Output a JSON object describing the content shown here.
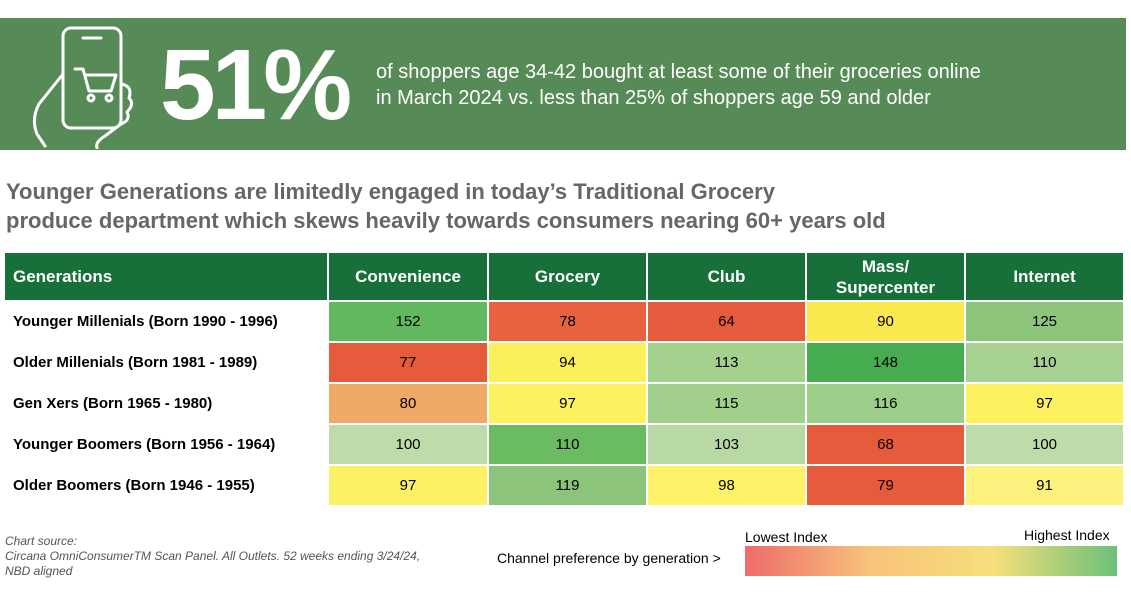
{
  "banner": {
    "stat": "51%",
    "lines": [
      "of shoppers age 34-42 bought at least some of their groceries online",
      "in March 2024 vs. less than 25% of shoppers age 59 and older"
    ]
  },
  "heading": [
    "Younger Generations are limitedly engaged in today’s Traditional Grocery",
    "produce department which skews heavily towards consumers nearing 60+ years old"
  ],
  "table": {
    "header": [
      "Generations",
      "Convenience",
      "Grocery",
      "Club",
      "Mass/\nSupercenter",
      "Internet"
    ],
    "rows": [
      [
        "Younger Millenials (Born 1990 - 1996)",
        152,
        78,
        64,
        90,
        125
      ],
      [
        "Older Millenials (Born 1981 - 1989)",
        77,
        94,
        113,
        148,
        110
      ],
      [
        "Gen Xers (Born 1965 - 1980)",
        80,
        97,
        115,
        116,
        97
      ],
      [
        "Younger Boomers (Born 1956 - 1964)",
        100,
        110,
        103,
        68,
        100
      ],
      [
        "Older Boomers (Born 1946 - 1955)",
        97,
        119,
        98,
        79,
        91
      ]
    ],
    "cell_colors": [
      [
        "#62b85e",
        "#e8623f",
        "#e55b3c",
        "#fbe84f",
        "#8ec57c"
      ],
      [
        "#e55b3c",
        "#fbef5a",
        "#a5d18f",
        "#45ad4f",
        "#a7d191"
      ],
      [
        "#f0a868",
        "#fdf160",
        "#a1cf8c",
        "#9ccd89",
        "#fdf160"
      ],
      [
        "#bedcaa",
        "#6bbb63",
        "#b8d9a3",
        "#e55b3c",
        "#bedcaa"
      ],
      [
        "#fcf064",
        "#8cc47b",
        "#fdf267",
        "#e55b3c",
        "#fdf17d"
      ]
    ]
  },
  "source": {
    "label": "Chart source:",
    "lines": [
      "Circana OmniConsumerTM Scan Panel. All Outlets. 52 weeks ending 3/24/24,",
      "NBD aligned"
    ]
  },
  "legend": {
    "caption": "Channel preference by generation >",
    "low": "Lowest Index",
    "high": "Highest Index",
    "colors": [
      "#ef6b6b",
      "#f8c27a",
      "#f6e07a",
      "#6cc07a"
    ]
  }
}
